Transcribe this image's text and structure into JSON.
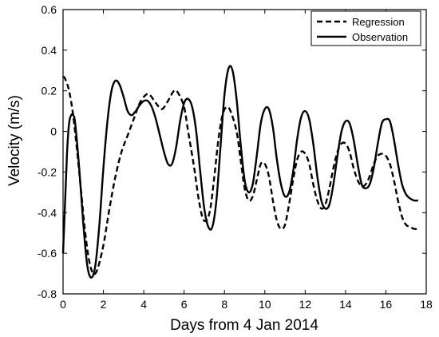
{
  "chart_data": {
    "type": "line",
    "xlabel": "Days from 4 Jan 2014",
    "ylabel": "Velocity (m/s)",
    "xlim": [
      0,
      18
    ],
    "ylim": [
      -0.8,
      0.6
    ],
    "xticks": [
      0,
      2,
      4,
      6,
      8,
      10,
      12,
      14,
      16,
      18
    ],
    "yticks": [
      -0.8,
      -0.6,
      -0.4,
      -0.2,
      0,
      0.2,
      0.4,
      0.6
    ],
    "grid": false,
    "legend_position": "top-right",
    "series": [
      {
        "name": "Regression",
        "style": "dashed",
        "color": "#000000",
        "x": [
          0,
          0.1,
          0.3,
          0.5,
          0.7,
          0.9,
          1.1,
          1.3,
          1.5,
          1.7,
          2.0,
          2.3,
          2.6,
          2.9,
          3.2,
          3.5,
          3.8,
          4.1,
          4.3,
          4.6,
          4.9,
          5.2,
          5.5,
          5.7,
          6.0,
          6.2,
          6.5,
          6.7,
          6.9,
          7.1,
          7.3,
          7.5,
          7.7,
          7.9,
          8.1,
          8.3,
          8.6,
          8.8,
          9.0,
          9.2,
          9.4,
          9.6,
          9.8,
          10.0,
          10.2,
          10.4,
          10.6,
          10.8,
          11.0,
          11.2,
          11.4,
          11.6,
          11.8,
          12.0,
          12.2,
          12.4,
          12.6,
          12.8,
          13.0,
          13.2,
          13.4,
          13.6,
          13.8,
          14.0,
          14.2,
          14.4,
          14.6,
          14.8,
          15.0,
          15.2,
          15.4,
          15.6,
          15.8,
          16.0,
          16.2,
          16.4,
          16.6,
          16.8,
          17.0,
          17.2,
          17.4,
          17.6
        ],
        "y": [
          0.27,
          0.26,
          0.2,
          0.08,
          -0.1,
          -0.3,
          -0.5,
          -0.64,
          -0.7,
          -0.68,
          -0.56,
          -0.38,
          -0.22,
          -0.1,
          -0.02,
          0.06,
          0.14,
          0.18,
          0.18,
          0.14,
          0.11,
          0.15,
          0.2,
          0.19,
          0.12,
          0.0,
          -0.18,
          -0.32,
          -0.42,
          -0.44,
          -0.38,
          -0.22,
          -0.04,
          0.08,
          0.12,
          0.1,
          0.0,
          -0.14,
          -0.28,
          -0.34,
          -0.32,
          -0.24,
          -0.16,
          -0.16,
          -0.22,
          -0.34,
          -0.44,
          -0.48,
          -0.46,
          -0.36,
          -0.24,
          -0.14,
          -0.1,
          -0.11,
          -0.16,
          -0.26,
          -0.34,
          -0.38,
          -0.36,
          -0.28,
          -0.18,
          -0.1,
          -0.06,
          -0.06,
          -0.1,
          -0.18,
          -0.24,
          -0.27,
          -0.26,
          -0.22,
          -0.16,
          -0.12,
          -0.11,
          -0.12,
          -0.16,
          -0.24,
          -0.34,
          -0.42,
          -0.46,
          -0.47,
          -0.48,
          -0.48
        ]
      },
      {
        "name": "Observation",
        "style": "solid",
        "color": "#000000",
        "x": [
          0,
          0.1,
          0.2,
          0.3,
          0.4,
          0.5,
          0.6,
          0.8,
          1.0,
          1.2,
          1.4,
          1.6,
          1.8,
          2.0,
          2.2,
          2.4,
          2.6,
          2.8,
          3.0,
          3.2,
          3.4,
          3.6,
          3.8,
          4.0,
          4.2,
          4.4,
          4.6,
          4.8,
          5.0,
          5.2,
          5.4,
          5.6,
          5.8,
          6.0,
          6.2,
          6.4,
          6.6,
          6.8,
          7.0,
          7.2,
          7.4,
          7.6,
          7.8,
          8.0,
          8.2,
          8.4,
          8.6,
          8.8,
          9.0,
          9.2,
          9.4,
          9.6,
          9.8,
          10.0,
          10.2,
          10.4,
          10.6,
          10.8,
          11.0,
          11.2,
          11.4,
          11.6,
          11.8,
          12.0,
          12.2,
          12.4,
          12.6,
          12.8,
          13.0,
          13.2,
          13.4,
          13.6,
          13.8,
          14.0,
          14.2,
          14.4,
          14.6,
          14.8,
          15.0,
          15.2,
          15.4,
          15.6,
          15.8,
          16.0,
          16.2,
          16.4,
          16.6,
          16.8,
          17.0,
          17.2,
          17.4,
          17.6
        ],
        "y": [
          -0.6,
          -0.35,
          -0.1,
          0.04,
          0.08,
          0.08,
          0.04,
          -0.18,
          -0.45,
          -0.66,
          -0.72,
          -0.66,
          -0.46,
          -0.18,
          0.05,
          0.2,
          0.25,
          0.23,
          0.17,
          0.1,
          0.08,
          0.1,
          0.13,
          0.15,
          0.15,
          0.12,
          0.06,
          -0.02,
          -0.1,
          -0.16,
          -0.16,
          -0.08,
          0.05,
          0.14,
          0.16,
          0.12,
          0.0,
          -0.2,
          -0.38,
          -0.47,
          -0.47,
          -0.34,
          -0.08,
          0.18,
          0.31,
          0.3,
          0.16,
          -0.06,
          -0.24,
          -0.3,
          -0.26,
          -0.12,
          0.04,
          0.11,
          0.11,
          0.02,
          -0.14,
          -0.26,
          -0.32,
          -0.3,
          -0.2,
          -0.04,
          0.07,
          0.1,
          0.06,
          -0.06,
          -0.22,
          -0.34,
          -0.38,
          -0.36,
          -0.26,
          -0.12,
          0.0,
          0.05,
          0.04,
          -0.04,
          -0.16,
          -0.26,
          -0.28,
          -0.26,
          -0.18,
          -0.06,
          0.04,
          0.06,
          0.05,
          -0.04,
          -0.16,
          -0.26,
          -0.31,
          -0.33,
          -0.34,
          -0.34
        ]
      }
    ]
  }
}
